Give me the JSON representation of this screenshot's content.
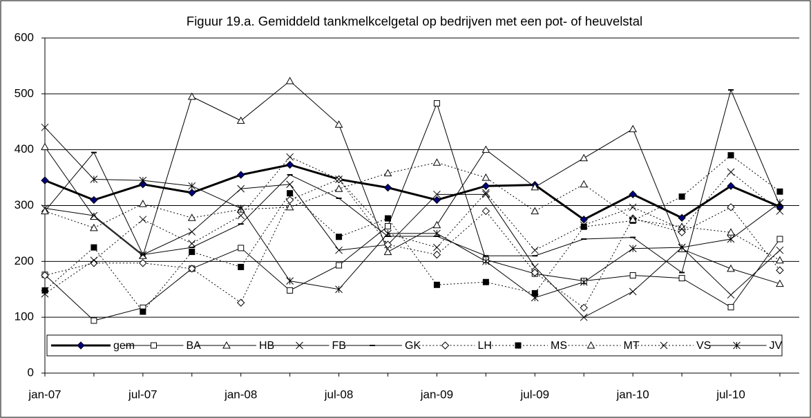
{
  "chart_data": {
    "type": "line",
    "title": "Figuur 19.a. Gemiddeld tankmelkcelgetal op bedrijven met een pot- of heuvelstal",
    "categories": [
      "jan-07",
      null,
      "jul-07",
      null,
      "jan-08",
      null,
      "jul-08",
      null,
      "jan-09",
      null,
      "jul-09",
      null,
      "jan-10",
      null,
      "jul-10",
      null
    ],
    "ylim": [
      0,
      600
    ],
    "yticks": [
      0,
      100,
      200,
      300,
      400,
      500,
      600
    ],
    "grid": true,
    "legend": "bottom",
    "series": [
      {
        "name": "gem",
        "color": "#000000",
        "marker": "diamond",
        "marker_fill": "#000080",
        "dash": "solid",
        "width": 3,
        "values": [
          345,
          310,
          338,
          323,
          355,
          373,
          347,
          332,
          310,
          335,
          337,
          275,
          320,
          278,
          335,
          298
        ]
      },
      {
        "name": "BA",
        "color": "#000000",
        "marker": "square",
        "marker_fill": "#ffffff",
        "dash": "solid",
        "width": 1,
        "values": [
          176,
          94,
          117,
          187,
          224,
          148,
          193,
          263,
          483,
          203,
          178,
          165,
          175,
          170,
          118,
          240
        ]
      },
      {
        "name": "HB",
        "color": "#000000",
        "marker": "triangle",
        "marker_fill": "#ffffff",
        "dash": "solid",
        "width": 1,
        "values": [
          405,
          280,
          210,
          495,
          452,
          523,
          445,
          217,
          265,
          400,
          333,
          385,
          437,
          222,
          187,
          160
        ]
      },
      {
        "name": "FB",
        "color": "#000000",
        "marker": "x",
        "marker_fill": "none",
        "dash": "solid",
        "width": 1,
        "values": [
          295,
          282,
          212,
          253,
          330,
          338,
          220,
          230,
          320,
          320,
          190,
          100,
          146,
          225,
          140,
          220
        ]
      },
      {
        "name": "GK",
        "color": "#000000",
        "marker": "dash",
        "marker_fill": "none",
        "dash": "solid",
        "width": 1,
        "values": [
          290,
          395,
          212,
          225,
          267,
          355,
          313,
          245,
          245,
          210,
          210,
          240,
          243,
          180,
          507,
          300
        ]
      },
      {
        "name": "LH",
        "color": "#000000",
        "marker": "diamond",
        "marker_fill": "#ffffff",
        "dash": "dotted",
        "width": 1,
        "values": [
          175,
          197,
          197,
          187,
          126,
          310,
          347,
          230,
          212,
          290,
          180,
          117,
          277,
          252,
          297,
          184
        ]
      },
      {
        "name": "MS",
        "color": "#000000",
        "marker": "square",
        "marker_fill": "#000000",
        "dash": "dotted",
        "width": 1,
        "values": [
          148,
          225,
          110,
          217,
          190,
          322,
          244,
          277,
          158,
          163,
          143,
          262,
          273,
          316,
          390,
          325
        ]
      },
      {
        "name": "MT",
        "color": "#000000",
        "marker": "triangle",
        "marker_fill": "#ffffff",
        "dash": "dotted",
        "width": 1,
        "values": [
          290,
          260,
          303,
          278,
          293,
          297,
          330,
          358,
          377,
          350,
          290,
          338,
          275,
          262,
          252,
          202
        ]
      },
      {
        "name": "VS",
        "color": "#000000",
        "marker": "x",
        "marker_fill": "none",
        "dash": "dotted",
        "width": 1,
        "values": [
          142,
          202,
          275,
          232,
          282,
          387,
          347,
          250,
          225,
          323,
          220,
          265,
          297,
          258,
          360,
          290
        ]
      },
      {
        "name": "JV",
        "color": "#000000",
        "marker": "asterisk",
        "marker_fill": "none",
        "dash": "solid",
        "width": 1,
        "values": [
          440,
          347,
          345,
          335,
          295,
          165,
          150,
          250,
          250,
          200,
          135,
          163,
          223,
          225,
          240,
          305
        ]
      }
    ]
  }
}
